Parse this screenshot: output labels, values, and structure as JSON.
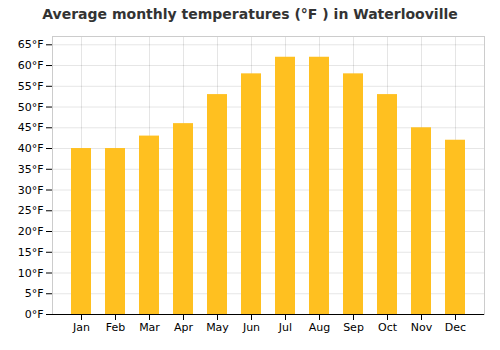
{
  "chart_data": {
    "type": "bar",
    "title": "Average monthly temperatures (°F ) in Waterlooville",
    "categories": [
      "Jan",
      "Feb",
      "Mar",
      "Apr",
      "May",
      "Jun",
      "Jul",
      "Aug",
      "Sep",
      "Oct",
      "Nov",
      "Dec"
    ],
    "values": [
      40,
      40,
      43,
      46,
      53,
      58,
      62,
      62,
      58,
      53,
      45,
      42
    ],
    "color": "#FFC020",
    "ylim": [
      0,
      67
    ],
    "yticks": [
      {
        "value": 0,
        "label": "0°F"
      },
      {
        "value": 5,
        "label": "5°F"
      },
      {
        "value": 10,
        "label": "10°F"
      },
      {
        "value": 15,
        "label": "15°F"
      },
      {
        "value": 20,
        "label": "20°F"
      },
      {
        "value": 25,
        "label": "25°F"
      },
      {
        "value": 30,
        "label": "30°F"
      },
      {
        "value": 35,
        "label": "35°F"
      },
      {
        "value": 40,
        "label": "40°F"
      },
      {
        "value": 45,
        "label": "45°F"
      },
      {
        "value": 50,
        "label": "50°F"
      },
      {
        "value": 55,
        "label": "55°F"
      },
      {
        "value": 60,
        "label": "60°F"
      },
      {
        "value": 65,
        "label": "65°F"
      }
    ],
    "grid": true
  }
}
